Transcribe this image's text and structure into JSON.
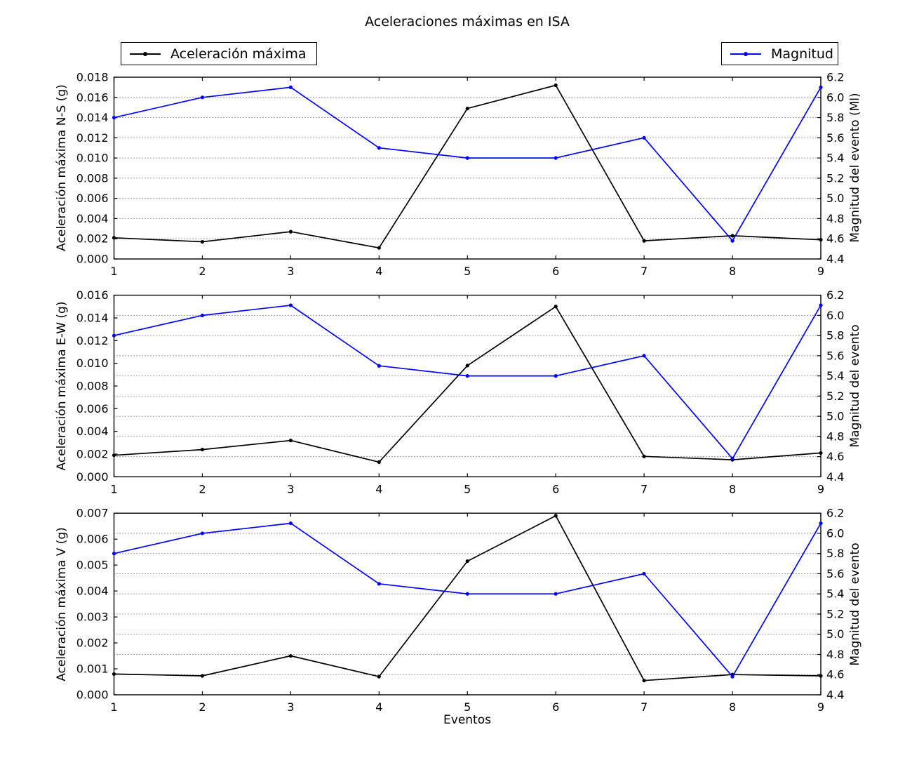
{
  "title": "Aceleraciones máximas en ISA",
  "xlabel": "Eventos",
  "legend": {
    "acceleration_label": "Aceleración máxima",
    "magnitude_label": "Magnitud"
  },
  "colors": {
    "acceleration": "#000000",
    "magnitude": "#0000ff",
    "grid": "#000000",
    "axis": "#000000"
  },
  "chart_data": [
    {
      "id": "ns",
      "type": "line",
      "x": [
        1,
        2,
        3,
        4,
        5,
        6,
        7,
        8,
        9
      ],
      "xlim": [
        1,
        9
      ],
      "xticks": [
        1,
        2,
        3,
        4,
        5,
        6,
        7,
        8,
        9
      ],
      "ylabel_left": "Aceleración máxima N-S (g)",
      "ylabel_right": "Magnitud del evento (Ml)",
      "ylim_left": [
        0.0,
        0.018
      ],
      "yticks_left": [
        0.0,
        0.002,
        0.004,
        0.006,
        0.008,
        0.01,
        0.012,
        0.014,
        0.016,
        0.018
      ],
      "ytick_decimals_left": 3,
      "ylim_right": [
        4.4,
        6.2
      ],
      "yticks_right": [
        4.4,
        4.6,
        4.8,
        5.0,
        5.2,
        5.4,
        5.6,
        5.8,
        6.0,
        6.2
      ],
      "ytick_decimals_right": 1,
      "grid_y_right": [
        4.6,
        4.8,
        5.0,
        5.2,
        5.4,
        5.6,
        5.8,
        6.0
      ],
      "grid_style": "dotted-horizontal",
      "legend_position": "above-plot",
      "series": [
        {
          "name": "Aceleración máxima",
          "axis": "left",
          "color": "#000000",
          "values": [
            0.0021,
            0.0017,
            0.0027,
            0.0011,
            0.0149,
            0.0172,
            0.0018,
            0.0023,
            0.0019
          ]
        },
        {
          "name": "Magnitud",
          "axis": "right",
          "color": "#0000ff",
          "values": [
            5.8,
            6.0,
            6.1,
            5.5,
            5.4,
            5.4,
            5.6,
            4.58,
            6.1
          ]
        }
      ]
    },
    {
      "id": "ew",
      "type": "line",
      "x": [
        1,
        2,
        3,
        4,
        5,
        6,
        7,
        8,
        9
      ],
      "xlim": [
        1,
        9
      ],
      "xticks": [
        1,
        2,
        3,
        4,
        5,
        6,
        7,
        8,
        9
      ],
      "ylabel_left": "Aceleración máxima E-W (g)",
      "ylabel_right": "Magnitud del evento",
      "ylim_left": [
        0.0,
        0.016
      ],
      "yticks_left": [
        0.0,
        0.002,
        0.004,
        0.006,
        0.008,
        0.01,
        0.012,
        0.014,
        0.016
      ],
      "ytick_decimals_left": 3,
      "ylim_right": [
        4.4,
        6.2
      ],
      "yticks_right": [
        4.4,
        4.6,
        4.8,
        5.0,
        5.2,
        5.4,
        5.6,
        5.8,
        6.0,
        6.2
      ],
      "ytick_decimals_right": 1,
      "grid_y_right": [
        4.6,
        4.8,
        5.0,
        5.2,
        5.4,
        5.6,
        5.8,
        6.0
      ],
      "grid_style": "dotted-horizontal",
      "legend_position": "none",
      "series": [
        {
          "name": "Aceleración máxima",
          "axis": "left",
          "color": "#000000",
          "values": [
            0.0019,
            0.0024,
            0.0032,
            0.0013,
            0.0098,
            0.015,
            0.0018,
            0.0015,
            0.0021
          ]
        },
        {
          "name": "Magnitud",
          "axis": "right",
          "color": "#0000ff",
          "values": [
            5.8,
            6.0,
            6.1,
            5.5,
            5.4,
            5.4,
            5.6,
            4.58,
            6.1
          ]
        }
      ]
    },
    {
      "id": "v",
      "type": "line",
      "x": [
        1,
        2,
        3,
        4,
        5,
        6,
        7,
        8,
        9
      ],
      "xlim": [
        1,
        9
      ],
      "xticks": [
        1,
        2,
        3,
        4,
        5,
        6,
        7,
        8,
        9
      ],
      "ylabel_left": "Aceleración máxima V (g)",
      "ylabel_right": "Magnitud del evento",
      "ylim_left": [
        0.0,
        0.007
      ],
      "yticks_left": [
        0.0,
        0.001,
        0.002,
        0.003,
        0.004,
        0.005,
        0.006,
        0.007
      ],
      "ytick_decimals_left": 3,
      "ylim_right": [
        4.4,
        6.2
      ],
      "yticks_right": [
        4.4,
        4.6,
        4.8,
        5.0,
        5.2,
        5.4,
        5.6,
        5.8,
        6.0,
        6.2
      ],
      "ytick_decimals_right": 1,
      "grid_y_right": [
        4.6,
        4.8,
        5.0,
        5.2,
        5.4,
        5.6,
        5.8,
        6.0
      ],
      "grid_style": "dotted-horizontal",
      "legend_position": "none",
      "series": [
        {
          "name": "Aceleración máxima",
          "axis": "left",
          "color": "#000000",
          "values": [
            0.0008,
            0.00073,
            0.0015,
            0.0007,
            0.00515,
            0.0069,
            0.00055,
            0.00078,
            0.00073
          ]
        },
        {
          "name": "Magnitud",
          "axis": "right",
          "color": "#0000ff",
          "values": [
            5.8,
            6.0,
            6.1,
            5.5,
            5.4,
            5.4,
            5.6,
            4.58,
            6.1
          ]
        }
      ]
    }
  ]
}
